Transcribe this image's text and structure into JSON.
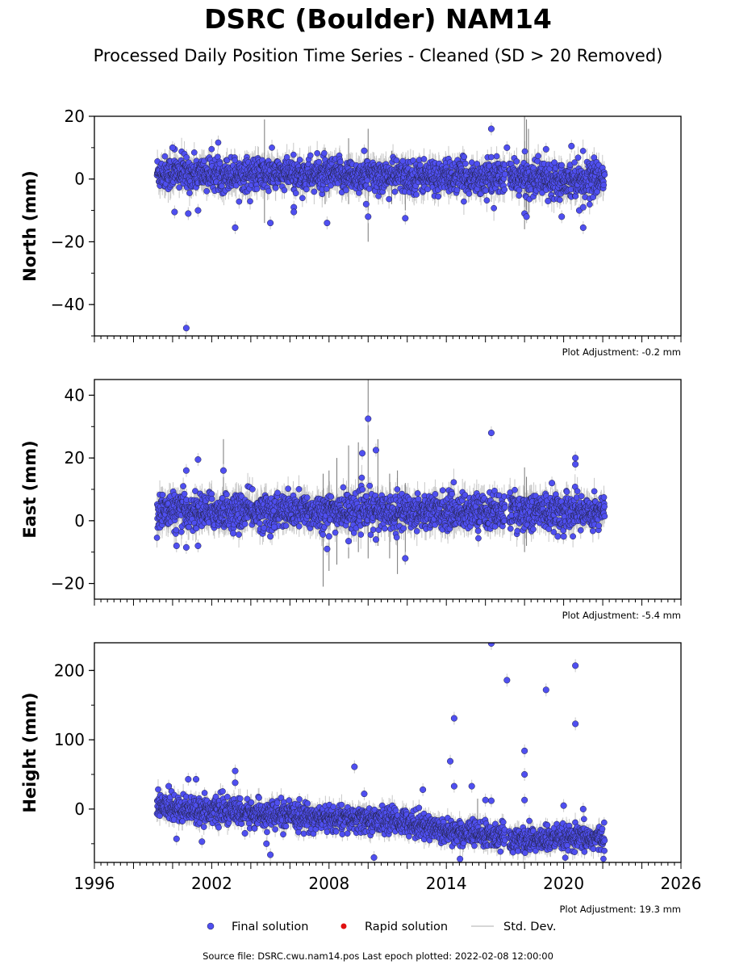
{
  "header": {
    "title": "DSRC (Boulder) NAM14",
    "subtitle": "Processed Daily Position Time Series - Cleaned (SD > 20 Removed)"
  },
  "footer": {
    "source": "Source file: DSRC.cwu.nam14.pos  Last epoch plotted: 2022-02-08 12:00:00"
  },
  "colors": {
    "final": "#4f4ff0",
    "rapid": "#e01010",
    "std": "#c8c8c8",
    "edge": "#222244"
  },
  "chart_data": {
    "type": "scatter",
    "x_unit": "year",
    "xlim": [
      1996,
      2026
    ],
    "x_ticks": [
      1996,
      2002,
      2008,
      2014,
      2020,
      2026
    ],
    "x_tick_labels": [
      "1996",
      "2002",
      "2008",
      "2014",
      "2020",
      "2026"
    ],
    "data_start": 1999.2,
    "data_end": 2022.1,
    "gap": [
      2017.0,
      2017.2
    ],
    "legend": {
      "placement": "bottom-center",
      "entries": [
        "Final solution",
        "Rapid solution",
        "Std. Dev."
      ]
    },
    "panels": [
      {
        "ylabel": "North (mm)",
        "ylim": [
          -50,
          20
        ],
        "y_ticks": [
          20,
          0,
          -20,
          -40
        ],
        "y_tick_labels": [
          "20",
          "0",
          "−20",
          "−40"
        ],
        "adjustment": "Plot Adjustment: -0.2 mm",
        "trend": [
          [
            1999.2,
            2
          ],
          [
            2022.1,
            0
          ]
        ],
        "scatter": 2.6,
        "outliers": [
          [
            2000.1,
            9.5
          ],
          [
            2000.0,
            10
          ],
          [
            2000.1,
            -10.5
          ],
          [
            2000.8,
            -11
          ],
          [
            2001.3,
            -10
          ],
          [
            2003.2,
            -15.5
          ],
          [
            2005.0,
            -14
          ],
          [
            2006.2,
            -9
          ],
          [
            2006.2,
            -10.5
          ],
          [
            2007.9,
            -14
          ],
          [
            2009.8,
            9
          ],
          [
            2009.9,
            -8
          ],
          [
            2010.0,
            -12
          ],
          [
            2011.9,
            -12.5
          ],
          [
            2016.3,
            16
          ],
          [
            2017.1,
            10
          ],
          [
            2018.0,
            -11
          ],
          [
            2018.1,
            -12
          ],
          [
            2019.1,
            9.5
          ],
          [
            2019.2,
            -7
          ],
          [
            2019.9,
            -12
          ],
          [
            2020.4,
            10.5
          ],
          [
            2020.8,
            -10
          ],
          [
            2021.0,
            -9
          ],
          [
            2021.0,
            -15.5
          ],
          [
            2000.7,
            -47.5
          ]
        ],
        "std_spikes": [
          [
            2004.7,
            19,
            -14
          ],
          [
            2007.8,
            10,
            -8
          ],
          [
            2008.0,
            8,
            -6
          ],
          [
            2009.0,
            13,
            -8
          ],
          [
            2010.0,
            16,
            -20
          ],
          [
            2011.2,
            9,
            -8
          ],
          [
            2011.9,
            7,
            -10
          ],
          [
            2018.0,
            20,
            -16
          ],
          [
            2018.1,
            19,
            -14
          ],
          [
            2018.2,
            16,
            -12
          ]
        ]
      },
      {
        "ylabel": "East (mm)",
        "ylim": [
          -25,
          45
        ],
        "y_ticks": [
          40,
          20,
          0,
          -20
        ],
        "y_tick_labels": [
          "40",
          "20",
          "0",
          "−20"
        ],
        "adjustment": "Plot Adjustment: -5.4 mm",
        "trend": [
          [
            1999.2,
            3
          ],
          [
            2022.1,
            3
          ]
        ],
        "scatter": 2.8,
        "outliers": [
          [
            2000.2,
            -8
          ],
          [
            2000.7,
            -8.5
          ],
          [
            2000.7,
            16
          ],
          [
            2001.3,
            -8
          ],
          [
            2001.3,
            19.5
          ],
          [
            2002.6,
            16
          ],
          [
            2003.1,
            -4
          ],
          [
            2005.0,
            -5
          ],
          [
            2005.2,
            -2
          ],
          [
            2007.9,
            -9
          ],
          [
            2008.0,
            -5
          ],
          [
            2009.0,
            -6.5
          ],
          [
            2009.7,
            21.5
          ],
          [
            2010.0,
            32.5
          ],
          [
            2010.4,
            -6
          ],
          [
            2010.4,
            22.5
          ],
          [
            2011.9,
            -12
          ],
          [
            2016.3,
            28
          ],
          [
            2020.6,
            20
          ],
          [
            2020.6,
            18
          ],
          [
            2019.7,
            -5
          ],
          [
            2020.0,
            -5
          ],
          [
            2019.4,
            12
          ]
        ],
        "std_spikes": [
          [
            2007.7,
            15,
            -21
          ],
          [
            2008.0,
            16,
            -16
          ],
          [
            2008.4,
            20,
            -14
          ],
          [
            2009.0,
            24,
            -12
          ],
          [
            2009.5,
            25,
            -10
          ],
          [
            2010.0,
            45,
            -12
          ],
          [
            2010.5,
            26,
            -8
          ],
          [
            2011.1,
            15,
            -12
          ],
          [
            2011.5,
            16,
            -17
          ],
          [
            2011.9,
            12,
            -14
          ],
          [
            2018.0,
            17,
            -10
          ],
          [
            2018.1,
            14,
            -8
          ],
          [
            2002.6,
            26,
            -2
          ]
        ]
      },
      {
        "ylabel": "Height (mm)",
        "ylim": [
          -77,
          240
        ],
        "y_ticks": [
          200,
          100,
          0
        ],
        "y_tick_labels": [
          "200",
          "100",
          "0"
        ],
        "adjustment": "Plot Adjustment: 19.3 mm",
        "trend": [
          [
            1999.2,
            4
          ],
          [
            2002.0,
            -2
          ],
          [
            2008.0,
            -14
          ],
          [
            2012.0,
            -18
          ],
          [
            2014.0,
            -32
          ],
          [
            2016.9,
            -40
          ],
          [
            2017.2,
            -45
          ],
          [
            2022.1,
            -42
          ]
        ],
        "scatter": 9,
        "outliers": [
          [
            1999.8,
            33
          ],
          [
            2000.2,
            -43
          ],
          [
            2000.8,
            43
          ],
          [
            2001.2,
            43
          ],
          [
            2001.5,
            -47
          ],
          [
            2003.2,
            55
          ],
          [
            2003.2,
            38
          ],
          [
            2003.7,
            -35
          ],
          [
            2004.8,
            -50
          ],
          [
            2005.0,
            -66
          ],
          [
            2009.3,
            61
          ],
          [
            2009.8,
            22
          ],
          [
            2010.3,
            -70
          ],
          [
            2012.8,
            28
          ],
          [
            2014.2,
            69
          ],
          [
            2014.4,
            131
          ],
          [
            2014.4,
            33
          ],
          [
            2014.7,
            -72
          ],
          [
            2015.3,
            33
          ],
          [
            2016.0,
            13
          ],
          [
            2016.3,
            239
          ],
          [
            2016.3,
            12
          ],
          [
            2017.1,
            186
          ],
          [
            2018.0,
            84
          ],
          [
            2018.0,
            50
          ],
          [
            2018.0,
            13
          ],
          [
            2019.1,
            172
          ],
          [
            2020.6,
            207
          ],
          [
            2020.6,
            123
          ],
          [
            2020.0,
            5
          ],
          [
            2021.0,
            0
          ]
        ],
        "std_spikes": [
          [
            2015.6,
            15,
            -35
          ]
        ]
      }
    ]
  }
}
